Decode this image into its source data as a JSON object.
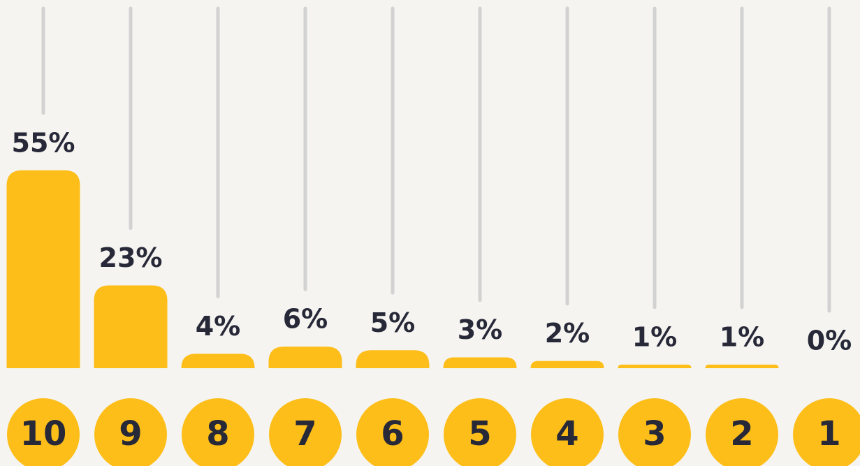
{
  "chart_data": {
    "type": "bar",
    "categories": [
      "10",
      "9",
      "8",
      "7",
      "6",
      "5",
      "4",
      "3",
      "2",
      "1"
    ],
    "values": [
      55,
      23,
      4,
      6,
      5,
      3,
      2,
      1,
      1,
      0
    ],
    "value_labels": [
      "55%",
      "23%",
      "4%",
      "6%",
      "5%",
      "3%",
      "2%",
      "1%",
      "1%",
      "0%"
    ],
    "color": "#fdbe1a",
    "ylim": [
      0,
      100
    ]
  }
}
